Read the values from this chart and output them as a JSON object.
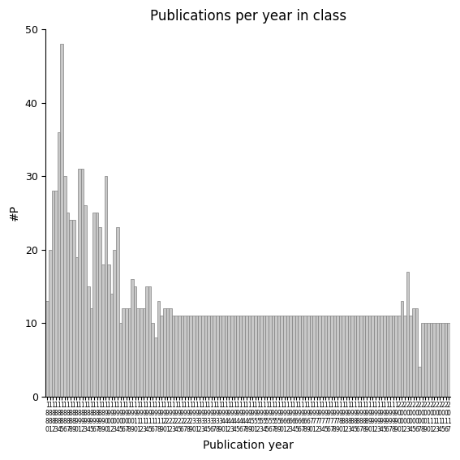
{
  "title": "Publications per year in class",
  "xlabel": "Publication year",
  "ylabel": "#P",
  "bar_color": "#c8c8c8",
  "bar_edge_color": "#808080",
  "ylim": [
    0,
    50
  ],
  "yticks": [
    0,
    10,
    20,
    30,
    40,
    50
  ],
  "years": [
    1880,
    1881,
    1882,
    1883,
    1884,
    1885,
    1886,
    1887,
    1888,
    1889,
    1890,
    1891,
    1892,
    1893,
    1894,
    1895,
    1896,
    1897,
    1898,
    1899,
    1900,
    1901,
    1902,
    1903,
    1904,
    1905,
    1906,
    1907,
    1908,
    1909,
    1910,
    1911,
    1912,
    1913,
    1914,
    1915,
    1916,
    1917,
    1918,
    1919,
    1920,
    1921,
    1922,
    1923,
    1924,
    1925,
    1926,
    1927,
    1928,
    1929,
    1930,
    1931,
    1932,
    1933,
    1934,
    1935,
    1936,
    1937,
    1938,
    1939,
    1940,
    1941,
    1942,
    1943,
    1944,
    1945,
    1946,
    1947,
    1948,
    1949,
    1950,
    1951,
    1952,
    1953,
    1954,
    1955,
    1956,
    1957,
    1958,
    1959,
    1960,
    1961,
    1962,
    1963,
    1964,
    1965,
    1966,
    1967,
    1968,
    1969,
    1970,
    1971,
    1972,
    1973,
    1974,
    1975,
    1976,
    1977,
    1978,
    1979,
    1980,
    1981,
    1982,
    1983,
    1984,
    1985,
    1986,
    1987,
    1988,
    1989,
    1990,
    1991,
    1992,
    1993,
    1994,
    1995,
    1996,
    1997,
    1998,
    1999,
    2000,
    2001,
    2002,
    2003,
    2004,
    2005,
    2006,
    2007,
    2008,
    2009,
    2010,
    2011,
    2012,
    2013,
    2014,
    2015,
    2016,
    2017
  ],
  "values": [
    13,
    20,
    28,
    28,
    36,
    48,
    30,
    25,
    24,
    24,
    19,
    31,
    31,
    26,
    15,
    12,
    25,
    25,
    23,
    18,
    30,
    18,
    14,
    20,
    23,
    10,
    12,
    12,
    12,
    16,
    15,
    12,
    12,
    12,
    15,
    15,
    10,
    8,
    13,
    11,
    12,
    12,
    12,
    11,
    11,
    11,
    11,
    11,
    11,
    11,
    11,
    11,
    11,
    11,
    11,
    11,
    11,
    11,
    11,
    11,
    11,
    11,
    11,
    11,
    11,
    11,
    11,
    11,
    11,
    11,
    11,
    11,
    11,
    11,
    11,
    11,
    11,
    11,
    11,
    11,
    11,
    11,
    11,
    11,
    11,
    11,
    11,
    11,
    11,
    11,
    11,
    11,
    11,
    11,
    11,
    11,
    11,
    11,
    11,
    11,
    11,
    11,
    11,
    11,
    11,
    11,
    11,
    11,
    11,
    11,
    11,
    11,
    11,
    11,
    11,
    11,
    11,
    11,
    11,
    11,
    11,
    13,
    11,
    17,
    11,
    12,
    12,
    4,
    10,
    10,
    10,
    10,
    10,
    10,
    10,
    10,
    10,
    10
  ],
  "figsize": [
    5.67,
    5.67
  ],
  "dpi": 100
}
